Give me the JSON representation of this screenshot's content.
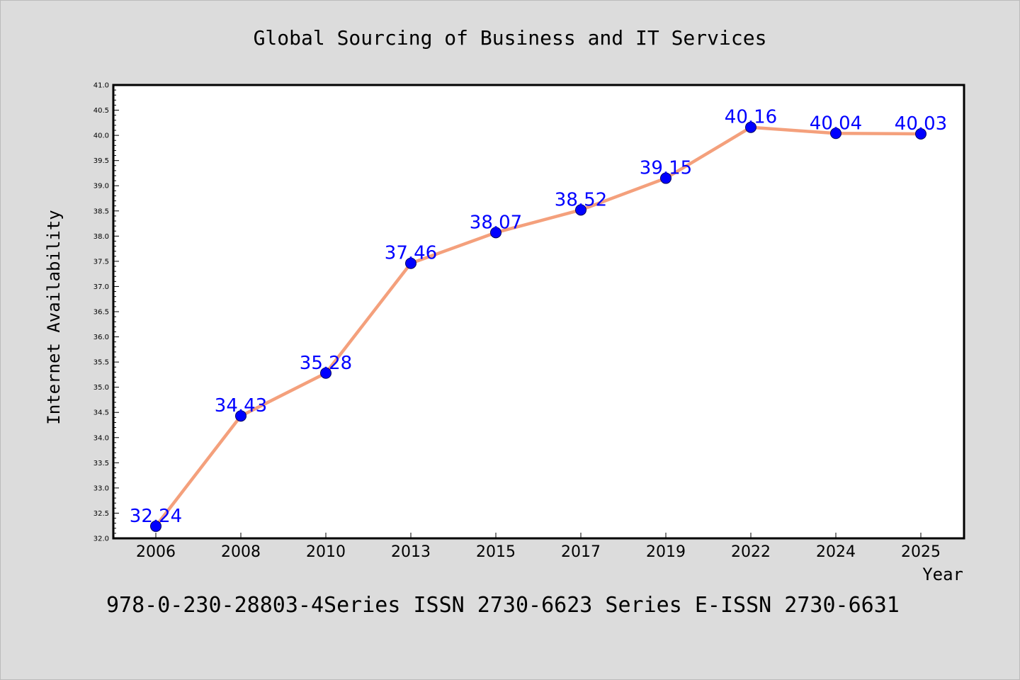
{
  "page": {
    "title": "Global Sourcing of Business and IT Services",
    "footer": "978-0-230-28803-4Series ISSN 2730-6623 Series E-ISSN 2730-6631"
  },
  "colors": {
    "background": "#dcdcdc",
    "plot_background": "#ffffff",
    "line": "#f4a07c",
    "marker": "#0000ff",
    "data_label": "#0000ff",
    "axis": "#000000"
  },
  "chart_data": {
    "type": "line",
    "title": "Global Sourcing of Business and IT Services",
    "xlabel": "Year",
    "ylabel": "Internet Availability",
    "categories": [
      "2006",
      "2008",
      "2010",
      "2013",
      "2015",
      "2017",
      "2019",
      "2022",
      "2024",
      "2025"
    ],
    "series": [
      {
        "values": [
          32.24,
          34.43,
          35.28,
          37.46,
          38.07,
          38.52,
          39.15,
          40.16,
          40.04,
          40.03
        ]
      }
    ],
    "data_labels": [
      "32.24",
      "34.43",
      "35.28",
      "37.46",
      "38.07",
      "38.52",
      "39.15",
      "40.16",
      "40.04",
      "40.03"
    ],
    "ylim": [
      32.0,
      41.0
    ],
    "y_ticks": [
      "32.0",
      "32.5",
      "33.0",
      "33.5",
      "34.0",
      "34.5",
      "35.0",
      "35.5",
      "36.0",
      "36.5",
      "37.0",
      "37.5",
      "38.0",
      "38.5",
      "39.0",
      "39.5",
      "40.0",
      "40.5",
      "41.0"
    ],
    "grid": false,
    "legend": "none",
    "marker": "circle"
  }
}
